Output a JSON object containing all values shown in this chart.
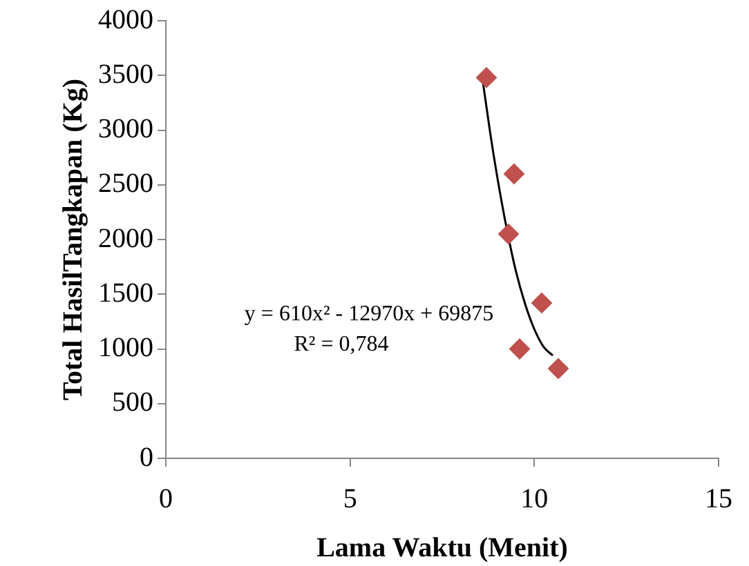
{
  "chart_data": {
    "type": "scatter",
    "xlabel": "Lama Waktu (Menit)",
    "ylabel": "Total HasilTangkapan (Kg)",
    "xlim": [
      0,
      15
    ],
    "xticks": [
      0,
      5,
      10,
      15
    ],
    "ylim": [
      0,
      4000
    ],
    "yticks": [
      0,
      500,
      1000,
      1500,
      2000,
      2500,
      3000,
      3500,
      4000
    ],
    "grid": false,
    "legend": false,
    "marker": "diamond",
    "series": [
      {
        "type": "scatter",
        "color": "#c0504d",
        "x": [
          8.7,
          9.45,
          9.3,
          10.2,
          9.6,
          10.65
        ],
        "values": [
          3480,
          2600,
          2050,
          1420,
          1000,
          820
        ]
      },
      {
        "type": "line",
        "color": "#000000",
        "marker": "none",
        "x": [
          8.6,
          8.8,
          9.0,
          9.25,
          9.5,
          9.75,
          10.0,
          10.25,
          10.5
        ],
        "values": [
          3450,
          2980,
          2560,
          2100,
          1710,
          1410,
          1180,
          1020,
          940
        ]
      }
    ],
    "annotations": [
      "y = 610x² - 12970x + 69875",
      "R² = 0,784"
    ]
  }
}
